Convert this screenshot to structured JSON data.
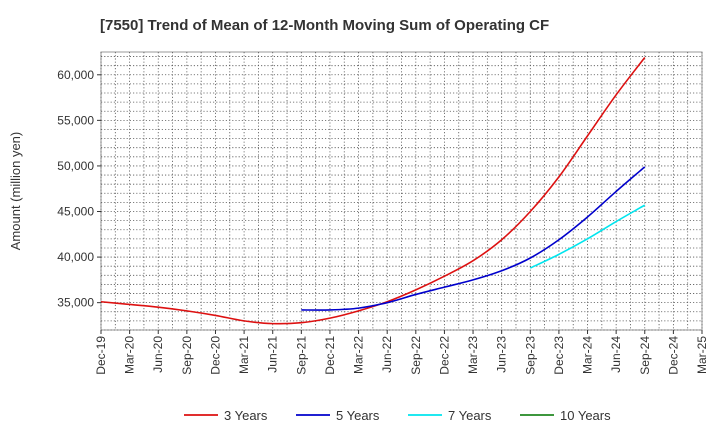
{
  "chart_data": {
    "type": "line",
    "title": "[7550]  Trend of Mean of 12-Month Moving Sum of Operating CF",
    "xlabel": "",
    "ylabel": "Amount (million yen)",
    "ylim": [
      32000,
      62500
    ],
    "yticks": [
      35000,
      40000,
      45000,
      50000,
      55000,
      60000
    ],
    "ytick_labels": [
      "35,000",
      "40,000",
      "45,000",
      "50,000",
      "55,000",
      "60,000"
    ],
    "x_ticks": [
      "Dec-19",
      "Mar-20",
      "Jun-20",
      "Sep-20",
      "Dec-20",
      "Mar-21",
      "Jun-21",
      "Sep-21",
      "Dec-21",
      "Mar-22",
      "Jun-22",
      "Sep-22",
      "Dec-22",
      "Mar-23",
      "Jun-23",
      "Sep-23",
      "Dec-23",
      "Mar-24",
      "Jun-24",
      "Sep-24",
      "Dec-24",
      "Mar-25"
    ],
    "grid": true,
    "legend_position": "bottom",
    "series": [
      {
        "name": "3 Years",
        "color": "#dd1111",
        "x": [
          "Dec-19",
          "Mar-20",
          "Jun-20",
          "Sep-20",
          "Dec-20",
          "Mar-21",
          "Jun-21",
          "Sep-21",
          "Dec-21",
          "Mar-22",
          "Jun-22",
          "Sep-22",
          "Dec-22",
          "Mar-23",
          "Jun-23",
          "Sep-23",
          "Dec-23",
          "Mar-24",
          "Jun-24",
          "Sep-24"
        ],
        "values": [
          35100,
          34800,
          34500,
          34100,
          33600,
          33000,
          32700,
          32800,
          33300,
          34100,
          35100,
          36400,
          37900,
          39600,
          41900,
          45000,
          48800,
          53300,
          57800,
          61900
        ]
      },
      {
        "name": "5 Years",
        "color": "#0000cc",
        "x": [
          "Sep-21",
          "Dec-21",
          "Mar-22",
          "Jun-22",
          "Sep-22",
          "Dec-22",
          "Mar-23",
          "Jun-23",
          "Sep-23",
          "Dec-23",
          "Mar-24",
          "Jun-24",
          "Sep-24"
        ],
        "values": [
          34200,
          34200,
          34400,
          35000,
          35900,
          36700,
          37500,
          38500,
          39900,
          41900,
          44400,
          47200,
          49900
        ]
      },
      {
        "name": "7 Years",
        "color": "#00e5ee",
        "x": [
          "Sep-23",
          "Dec-23",
          "Mar-24",
          "Jun-24",
          "Sep-24"
        ],
        "values": [
          38800,
          40300,
          42000,
          43900,
          45700
        ]
      },
      {
        "name": "10 Years",
        "color": "#228822",
        "x": [],
        "values": []
      }
    ]
  }
}
